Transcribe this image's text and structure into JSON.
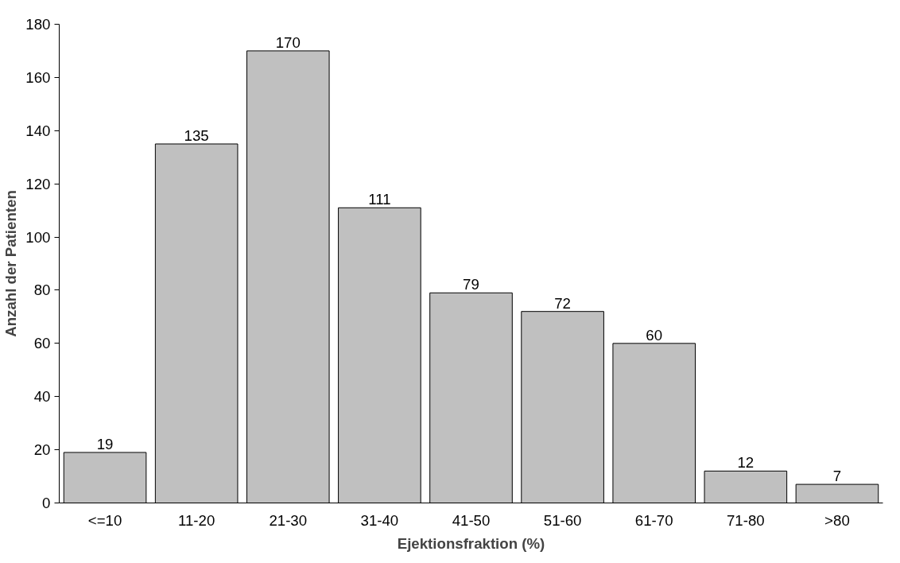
{
  "chart_data": {
    "type": "bar",
    "xlabel": "Ejektionsfraktion (%)",
    "ylabel": "Anzahl der Patienten",
    "categories": [
      "<=10",
      "11-20",
      "21-30",
      "31-40",
      "41-50",
      "51-60",
      "61-70",
      "71-80",
      ">80"
    ],
    "values": [
      19,
      135,
      170,
      111,
      79,
      72,
      60,
      12,
      7
    ],
    "color": "#c0c0c0",
    "ylim": [
      0,
      180
    ],
    "yticks": [
      0,
      20,
      40,
      60,
      80,
      100,
      120,
      140,
      160,
      180
    ],
    "grid": false,
    "data_labels": true
  }
}
